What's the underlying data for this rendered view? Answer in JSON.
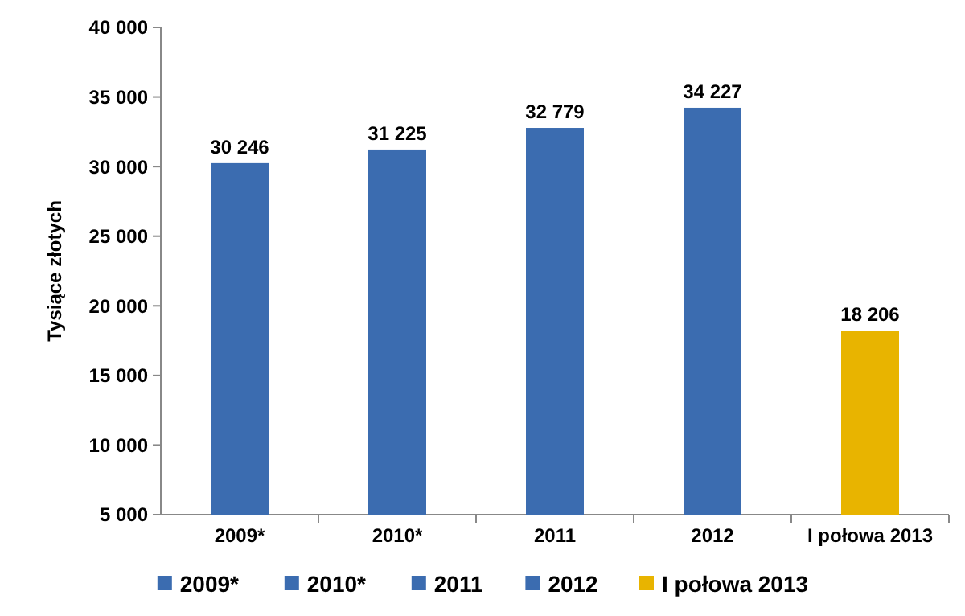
{
  "chart_data": {
    "type": "bar",
    "ylabel": "Tysiące złotych",
    "categories": [
      "2009*",
      "2010*",
      "2011",
      "2012",
      "I połowa 2013"
    ],
    "series": [
      {
        "name": "2009*",
        "color": "#3b6cb0",
        "values": [
          30246,
          null,
          null,
          null,
          null
        ],
        "value_labels": [
          "30 246",
          null,
          null,
          null,
          null
        ]
      },
      {
        "name": "2010*",
        "color": "#3b6cb0",
        "values": [
          null,
          31225,
          null,
          null,
          null
        ],
        "value_labels": [
          null,
          "31 225",
          null,
          null,
          null
        ]
      },
      {
        "name": "2011",
        "color": "#3b6cb0",
        "values": [
          null,
          null,
          32779,
          null,
          null
        ],
        "value_labels": [
          null,
          null,
          "32 779",
          null,
          null
        ]
      },
      {
        "name": "2012",
        "color": "#3b6cb0",
        "values": [
          null,
          null,
          null,
          34227,
          null
        ],
        "value_labels": [
          null,
          null,
          null,
          "34 227",
          null
        ]
      },
      {
        "name": "I połowa 2013",
        "color": "#e8b400",
        "values": [
          null,
          null,
          null,
          null,
          18206
        ],
        "value_labels": [
          null,
          null,
          null,
          null,
          "18 206"
        ]
      }
    ],
    "stacked": true,
    "ylim": [
      5000,
      40000
    ],
    "yticks": [
      {
        "value": 5000,
        "label": "5 000"
      },
      {
        "value": 10000,
        "label": "10 000"
      },
      {
        "value": 15000,
        "label": "15 000"
      },
      {
        "value": 20000,
        "label": "20 000"
      },
      {
        "value": 25000,
        "label": "25 000"
      },
      {
        "value": 30000,
        "label": "30 000"
      },
      {
        "value": 35000,
        "label": "35 000"
      },
      {
        "value": 40000,
        "label": "40 000"
      }
    ],
    "legend": "bottom"
  }
}
